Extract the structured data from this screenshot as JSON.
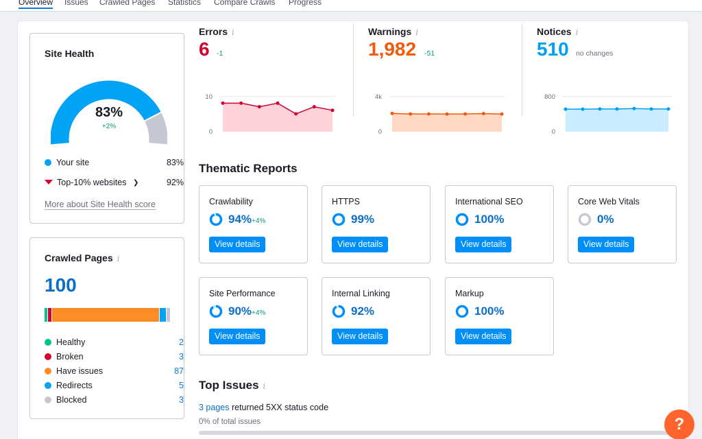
{
  "tabs": [
    "Overview",
    "Issues",
    "Crawled Pages",
    "Statistics",
    "Compare Crawls",
    "Progress"
  ],
  "site_health": {
    "title": "Site Health",
    "score": "83%",
    "delta": "+2%",
    "score_value": 83,
    "benchmark_value": 92,
    "your_site_label": "Your site",
    "your_site_value": "83%",
    "top10_label": "Top-10% websites",
    "top10_value": "92%",
    "more_link": "More about Site Health score"
  },
  "crawled_pages": {
    "title": "Crawled Pages",
    "info": "i",
    "total": "100",
    "items": [
      {
        "label": "Healthy",
        "value": "2",
        "color": "#00c48c",
        "count": 2
      },
      {
        "label": "Broken",
        "value": "3",
        "color": "#d1002f",
        "count": 3
      },
      {
        "label": "Have issues",
        "value": "87",
        "color": "#ff8c26",
        "count": 87
      },
      {
        "label": "Redirects",
        "value": "5",
        "color": "#00a3f5",
        "count": 5
      },
      {
        "label": "Blocked",
        "value": "3",
        "color": "#c5c8d2",
        "count": 3
      }
    ]
  },
  "metrics": {
    "errors": {
      "label": "Errors",
      "info": "i",
      "value": "6",
      "delta": "-1",
      "color": "#d1002f",
      "fill": "#ffd1d8",
      "ymax_label": "10",
      "ymin_label": "0",
      "ymax": 10,
      "series": [
        8,
        8,
        7,
        8,
        5,
        7,
        6
      ]
    },
    "warnings": {
      "label": "Warnings",
      "info": "i",
      "value": "1,982",
      "delta": "-51",
      "color": "#f3590a",
      "fill": "#ffd8c4",
      "ymax_label": "4k",
      "ymin_label": "0",
      "ymax": 4000,
      "series": [
        2050,
        1990,
        1990,
        1980,
        1990,
        2030,
        1982
      ]
    },
    "notices": {
      "label": "Notices",
      "info": "i",
      "value": "510",
      "delta": "no changes",
      "color": "#009ff2",
      "fill": "#c9ecff",
      "ymax_label": "800",
      "ymin_label": "0",
      "ymax": 800,
      "series": [
        505,
        505,
        510,
        510,
        520,
        510,
        510
      ]
    }
  },
  "thematic": {
    "title": "Thematic Reports",
    "reports": [
      {
        "name": "Crawlability",
        "pct": "94%",
        "delta": "+4%",
        "value": 94
      },
      {
        "name": "HTTPS",
        "pct": "99%",
        "delta": "",
        "value": 99
      },
      {
        "name": "International SEO",
        "pct": "100%",
        "delta": "",
        "value": 100
      },
      {
        "name": "Core Web Vitals",
        "pct": "0%",
        "delta": "",
        "value": 0
      },
      {
        "name": "Site Performance",
        "pct": "90%",
        "delta": "+4%",
        "value": 90
      },
      {
        "name": "Internal Linking",
        "pct": "92%",
        "delta": "",
        "value": 92
      },
      {
        "name": "Markup",
        "pct": "100%",
        "delta": "",
        "value": 100
      }
    ],
    "button_label": "View details"
  },
  "top_issues": {
    "title": "Top Issues",
    "info": "i",
    "issue_link": "3 pages",
    "issue_text": " returned 5XX status code",
    "issue_sub": "0% of total issues"
  },
  "help": "?"
}
